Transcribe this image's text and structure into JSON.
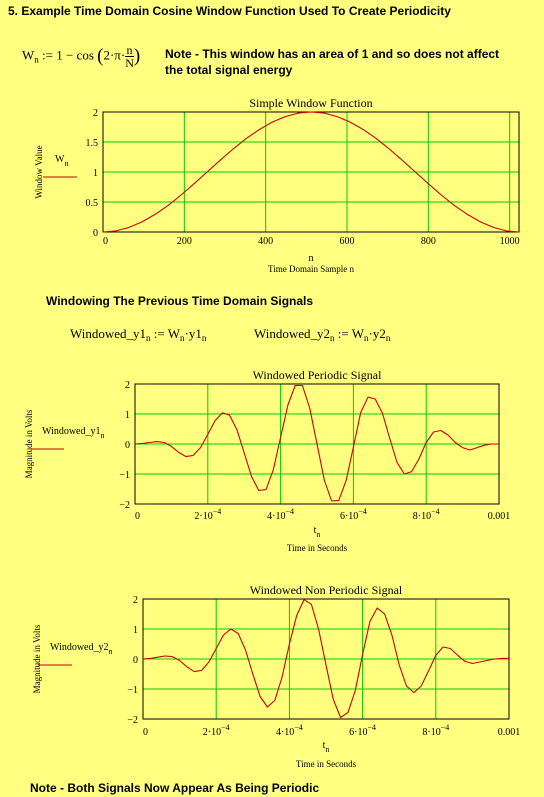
{
  "section_title": "5. Example Time Domain Cosine Window Function Used To Create Periodicity",
  "window_eq": {
    "lhs": "W",
    "lhs_sub": "n",
    "rhs_a": ":= 1 − cos",
    "rhs_b": "2·π·",
    "frac_num": "n",
    "frac_den": "N"
  },
  "note1": {
    "line1": "Note - This window has an area of 1 and so does not affect",
    "line2": "the total signal energy"
  },
  "section2_title": "Windowing The Previous Time Domain Signals",
  "eq_y1": {
    "lhs": "Windowed_y1",
    "sub": "n",
    "assign": ":= W",
    "sub2": "n",
    "mult": "·y1",
    "sub3": "n"
  },
  "eq_y2": {
    "lhs": "Windowed_y2",
    "sub": "n",
    "assign": ":= W",
    "sub2": "n",
    "mult": "·y2",
    "sub3": "n"
  },
  "note2": "Note - Both Signals Now Appear As Being Periodic",
  "colors": {
    "background": "#ffff80",
    "grid": "#00cc00",
    "trace": "#cc0000"
  },
  "chart_data": [
    {
      "type": "line",
      "title": "Simple Window Function",
      "xlabel_var": "n",
      "xlabel": "Time Domain Sample n",
      "ylabel": "Window Value",
      "legend_var": "W",
      "legend_sub": "n",
      "xlim": [
        0,
        1023
      ],
      "ylim": [
        0,
        2
      ],
      "xticks": [
        0,
        200,
        400,
        600,
        800,
        1000
      ],
      "xtick_labels": [
        "0",
        "200",
        "400",
        "600",
        "800",
        "1000"
      ],
      "yticks": [
        0,
        0.5,
        1,
        1.5,
        2
      ],
      "ytick_labels": [
        "0",
        "0.5",
        "1",
        "1.5",
        "2"
      ],
      "series": [
        {
          "x": [
            0,
            32,
            64,
            96,
            128,
            160,
            192,
            224,
            256,
            288,
            320,
            352,
            384,
            416,
            448,
            480,
            512,
            544,
            576,
            608,
            640,
            672,
            704,
            736,
            768,
            800,
            832,
            864,
            896,
            928,
            960,
            992,
            1023
          ],
          "y": [
            0,
            0.019,
            0.076,
            0.169,
            0.293,
            0.444,
            0.617,
            0.805,
            1.0,
            1.195,
            1.383,
            1.556,
            1.707,
            1.831,
            1.924,
            1.981,
            2.0,
            1.981,
            1.924,
            1.831,
            1.707,
            1.556,
            1.383,
            1.195,
            1.0,
            0.805,
            0.617,
            0.444,
            0.293,
            0.169,
            0.076,
            0.019,
            0
          ]
        }
      ]
    },
    {
      "type": "line",
      "title": "Windowed Periodic Signal",
      "xlabel_var": "t",
      "xlabel_sub": "n",
      "xlabel": "Time in Seconds",
      "ylabel": "Magnitude in Volts",
      "legend_var": "Windowed_y1",
      "legend_sub": "n",
      "xlim": [
        0,
        0.001
      ],
      "ylim": [
        -2,
        2
      ],
      "xticks": [
        0,
        0.0002,
        0.0004,
        0.0006,
        0.0008,
        0.001
      ],
      "xtick_labels": [
        {
          "m": "0",
          "e": ""
        },
        {
          "m": "2·10",
          "e": "−4"
        },
        {
          "m": "4·10",
          "e": "−4"
        },
        {
          "m": "6·10",
          "e": "−4"
        },
        {
          "m": "8·10",
          "e": "−4"
        },
        {
          "m": "0.001",
          "e": ""
        }
      ],
      "yticks": [
        -2,
        -1,
        0,
        1,
        2
      ],
      "ytick_labels": [
        "−2",
        "−1",
        "0",
        "1",
        "2"
      ],
      "series": [
        {
          "x": [
            0,
            2e-05,
            4e-05,
            6e-05,
            8e-05,
            0.0001,
            0.00012,
            0.00014,
            0.00016,
            0.00018,
            0.0002,
            0.00022,
            0.00024,
            0.00026,
            0.00028,
            0.0003,
            0.00032,
            0.00034,
            0.00036,
            0.00038,
            0.0004,
            0.00042,
            0.00044,
            0.00046,
            0.00048,
            0.0005,
            0.00052,
            0.00054,
            0.00056,
            0.00058,
            0.0006,
            0.00062,
            0.00064,
            0.00066,
            0.00068,
            0.0007,
            0.00072,
            0.00074,
            0.00076,
            0.00078,
            0.0008,
            0.00082,
            0.00084,
            0.00086,
            0.00088,
            0.0009,
            0.00092,
            0.00094,
            0.00096,
            0.00098,
            0.001
          ],
          "y": [
            0,
            0.02,
            0.05,
            0.08,
            0.05,
            -0.08,
            -0.28,
            -0.42,
            -0.38,
            -0.12,
            0.32,
            0.78,
            1.04,
            0.96,
            0.48,
            -0.3,
            -1.08,
            -1.55,
            -1.52,
            -0.86,
            0.22,
            1.3,
            1.95,
            1.95,
            1.2,
            0,
            -1.2,
            -1.9,
            -1.88,
            -1.22,
            -0.1,
            1.05,
            1.56,
            1.5,
            1.02,
            0.18,
            -0.62,
            -1.0,
            -0.92,
            -0.5,
            0.05,
            0.4,
            0.45,
            0.3,
            0.05,
            -0.12,
            -0.2,
            -0.12,
            -0.04,
            0,
            0
          ]
        }
      ]
    },
    {
      "type": "line",
      "title": "Windowed Non Periodic Signal",
      "xlabel_var": "t",
      "xlabel_sub": "n",
      "xlabel": "Time in Seconds",
      "ylabel": "Magnitude in Volts",
      "legend_var": "Windowed_y2",
      "legend_sub": "n",
      "xlim": [
        0,
        0.001
      ],
      "ylim": [
        -2,
        2
      ],
      "xticks": [
        0,
        0.0002,
        0.0004,
        0.0006,
        0.0008,
        0.001
      ],
      "xtick_labels": [
        {
          "m": "0",
          "e": ""
        },
        {
          "m": "2·10",
          "e": "−4"
        },
        {
          "m": "4·10",
          "e": "−4"
        },
        {
          "m": "6·10",
          "e": "−4"
        },
        {
          "m": "8·10",
          "e": "−4"
        },
        {
          "m": "0.001",
          "e": ""
        }
      ],
      "yticks": [
        -2,
        -1,
        0,
        1,
        2
      ],
      "ytick_labels": [
        "−2",
        "−1",
        "0",
        "1",
        "2"
      ],
      "series": [
        {
          "x": [
            0,
            2e-05,
            4e-05,
            6e-05,
            8e-05,
            0.0001,
            0.00012,
            0.00014,
            0.00016,
            0.00018,
            0.0002,
            0.00022,
            0.00024,
            0.00026,
            0.00028,
            0.0003,
            0.00032,
            0.00034,
            0.00036,
            0.00038,
            0.0004,
            0.00042,
            0.00044,
            0.00046,
            0.00048,
            0.0005,
            0.00052,
            0.00054,
            0.00056,
            0.00058,
            0.0006,
            0.00062,
            0.00064,
            0.00066,
            0.00068,
            0.0007,
            0.00072,
            0.00074,
            0.00076,
            0.00078,
            0.0008,
            0.00082,
            0.00084,
            0.00086,
            0.00088,
            0.0009,
            0.00092,
            0.00094,
            0.00096,
            0.00098,
            0.001
          ],
          "y": [
            0,
            0.02,
            0.06,
            0.1,
            0.08,
            -0.05,
            -0.26,
            -0.42,
            -0.38,
            -0.1,
            0.35,
            0.8,
            1.0,
            0.85,
            0.3,
            -0.5,
            -1.25,
            -1.6,
            -1.38,
            -0.6,
            0.5,
            1.45,
            1.98,
            1.82,
            0.98,
            -0.2,
            -1.35,
            -1.95,
            -1.78,
            -1.05,
            0.15,
            1.25,
            1.7,
            1.5,
            0.8,
            -0.2,
            -0.9,
            -1.12,
            -0.9,
            -0.4,
            0.12,
            0.4,
            0.35,
            0.12,
            -0.08,
            -0.15,
            -0.1,
            -0.05,
            0,
            0.02,
            0.02
          ]
        }
      ]
    }
  ]
}
